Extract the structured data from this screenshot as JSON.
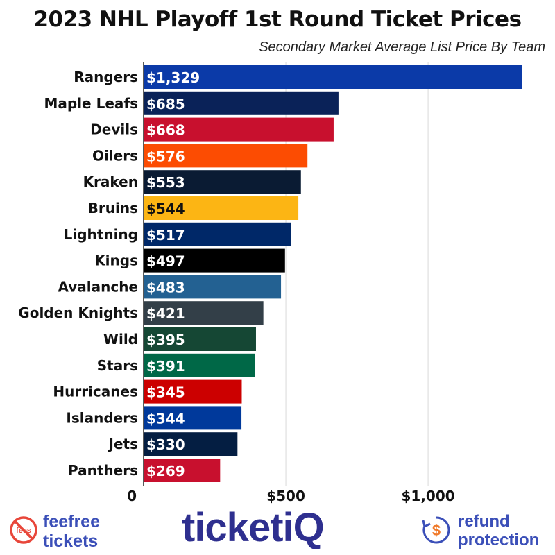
{
  "title": "2023 NHL Playoff 1st Round Ticket Prices",
  "subtitle": "Secondary Market Average List Price By Team",
  "chart_data": {
    "type": "bar",
    "orientation": "horizontal",
    "categories": [
      "Rangers",
      "Maple Leafs",
      "Devils",
      "Oilers",
      "Kraken",
      "Bruins",
      "Lightning",
      "Kings",
      "Avalanche",
      "Golden Knights",
      "Wild",
      "Stars",
      "Hurricanes",
      "Islanders",
      "Jets",
      "Panthers"
    ],
    "values": [
      1329,
      685,
      668,
      576,
      553,
      544,
      517,
      497,
      483,
      421,
      395,
      391,
      345,
      344,
      330,
      269
    ],
    "labels": [
      "$1,329",
      "$685",
      "$668",
      "$576",
      "$553",
      "$544",
      "$517",
      "$497",
      "$483",
      "$421",
      "$395",
      "$391",
      "$345",
      "$344",
      "$330",
      "$269"
    ],
    "colors": [
      "#0b3aa8",
      "#0a2258",
      "#c8102e",
      "#fc4c02",
      "#0a1b33",
      "#fcb514",
      "#002868",
      "#000000",
      "#236192",
      "#333f48",
      "#154734",
      "#006847",
      "#cc0000",
      "#00399b",
      "#041e42",
      "#c8102e"
    ],
    "label_colors": [
      "#ffffff",
      "#ffffff",
      "#ffffff",
      "#ffffff",
      "#ffffff",
      "#111111",
      "#ffffff",
      "#ffffff",
      "#ffffff",
      "#ffffff",
      "#ffffff",
      "#ffffff",
      "#ffffff",
      "#ffffff",
      "#ffffff",
      "#ffffff"
    ],
    "xlim": [
      0,
      1329
    ],
    "xticks": [
      0,
      500,
      1000
    ],
    "xtick_labels": [
      "0",
      "$500",
      "$1,000"
    ],
    "grid": true
  },
  "footer": {
    "fee_badge": "fees",
    "fee_line1": "feefree",
    "fee_line2": "tickets",
    "brand": "ticketiQ",
    "refund_line1": "refund",
    "refund_line2": "protection",
    "brand_color": "#2e2f8f",
    "accent_red": "#e8463a",
    "accent_orange": "#f07a2a"
  }
}
